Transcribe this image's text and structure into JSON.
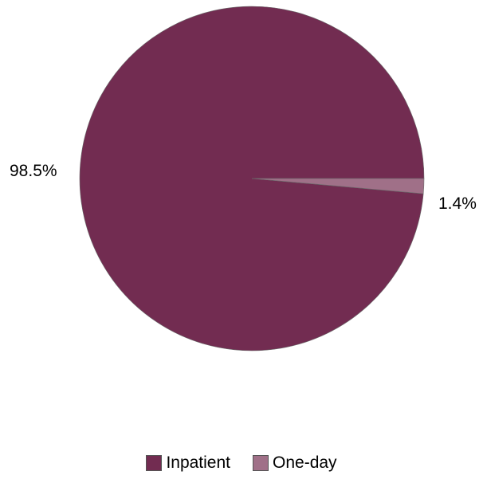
{
  "chart_data": {
    "type": "pie",
    "title": "",
    "slices": [
      {
        "label": "Inpatient",
        "value": 98.5,
        "value_label": "98.5%",
        "color": "#722c51"
      },
      {
        "label": "One-day",
        "value": 1.4,
        "value_label": "1.4%",
        "color": "#a07088"
      }
    ],
    "legend_position": "bottom"
  }
}
